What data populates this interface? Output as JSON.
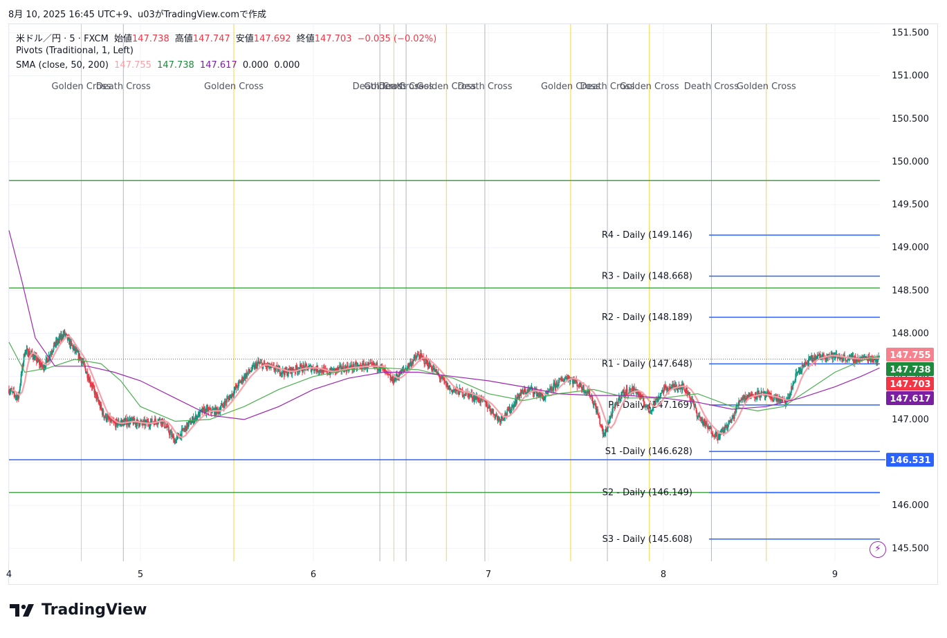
{
  "caption": "8月 10, 2025 16:45 UTC+9、u03がTradingView.comで作成",
  "legend": {
    "symbol": "米ドル／円 · 5 · FXCM",
    "open_label": "始値",
    "open": "147.738",
    "high_label": "高値",
    "high": "147.747",
    "low_label": "安値",
    "low": "147.692",
    "close_label": "終値",
    "close": "147.703",
    "change": "−0.035 (−0.02%)",
    "pivots": "Pivots (Traditional, 1, Left)",
    "sma_title": "SMA (close, 50, 200)",
    "sma_values": [
      "147.755",
      "147.738",
      "147.617",
      "0.000",
      "0.000"
    ]
  },
  "brand": "TradingView",
  "icons": {
    "logo": "tradingview-logo-icon",
    "indicator": "lightning-bolt-icon"
  },
  "colors": {
    "up": "#089981",
    "down": "#f23645",
    "sma_fast": "#f7a1a8",
    "sma_mid": "#4caf50",
    "sma_slow": "#9c27b0",
    "pivot": "#2962ff",
    "hline": "#43a047",
    "golden": "#f5d442",
    "death": "#b2b5be"
  },
  "chart_data": {
    "type": "candlestick",
    "y_axis": {
      "min": 145.35,
      "max": 151.6,
      "ticks": [
        "151.500",
        "151.000",
        "150.500",
        "150.000",
        "149.500",
        "149.000",
        "148.500",
        "148.000",
        "147.500",
        "147.000",
        "146.500",
        "146.000",
        "145.500"
      ]
    },
    "x_axis": {
      "ticks": [
        "4",
        "5",
        "6",
        "7",
        "8",
        "9"
      ]
    },
    "price_path": [
      [
        4.0,
        147.35
      ],
      [
        4.07,
        147.25
      ],
      [
        4.12,
        147.8
      ],
      [
        4.18,
        147.75
      ],
      [
        4.26,
        147.6
      ],
      [
        4.34,
        147.85
      ],
      [
        4.42,
        148.0
      ],
      [
        4.48,
        147.85
      ],
      [
        4.55,
        147.7
      ],
      [
        4.63,
        147.4
      ],
      [
        4.72,
        147.05
      ],
      [
        4.8,
        146.95
      ],
      [
        4.92,
        146.98
      ],
      [
        5.02,
        146.95
      ],
      [
        5.12,
        147.0
      ],
      [
        5.2,
        146.75
      ],
      [
        5.28,
        146.95
      ],
      [
        5.36,
        147.1
      ],
      [
        5.45,
        147.1
      ],
      [
        5.53,
        147.3
      ],
      [
        5.6,
        147.5
      ],
      [
        5.68,
        147.65
      ],
      [
        5.76,
        147.6
      ],
      [
        5.84,
        147.55
      ],
      [
        5.92,
        147.6
      ],
      [
        6.0,
        147.6
      ],
      [
        6.08,
        147.55
      ],
      [
        6.18,
        147.6
      ],
      [
        6.28,
        147.62
      ],
      [
        6.38,
        147.62
      ],
      [
        6.45,
        147.45
      ],
      [
        6.53,
        147.6
      ],
      [
        6.6,
        147.75
      ],
      [
        6.68,
        147.6
      ],
      [
        6.78,
        147.35
      ],
      [
        6.88,
        147.3
      ],
      [
        6.98,
        147.2
      ],
      [
        7.06,
        147.0
      ],
      [
        7.12,
        147.1
      ],
      [
        7.18,
        147.3
      ],
      [
        7.25,
        147.35
      ],
      [
        7.32,
        147.25
      ],
      [
        7.38,
        147.4
      ],
      [
        7.45,
        147.5
      ],
      [
        7.52,
        147.4
      ],
      [
        7.58,
        147.3
      ],
      [
        7.62,
        147.1
      ],
      [
        7.66,
        146.8
      ],
      [
        7.7,
        147.05
      ],
      [
        7.76,
        147.3
      ],
      [
        7.84,
        147.35
      ],
      [
        7.92,
        147.1
      ],
      [
        8.0,
        147.35
      ],
      [
        8.1,
        147.4
      ],
      [
        8.15,
        147.3
      ],
      [
        8.2,
        147.05
      ],
      [
        8.26,
        146.9
      ],
      [
        8.32,
        146.8
      ],
      [
        8.4,
        147.0
      ],
      [
        8.45,
        147.25
      ],
      [
        8.55,
        147.3
      ],
      [
        8.65,
        147.25
      ],
      [
        8.72,
        147.2
      ],
      [
        8.78,
        147.55
      ],
      [
        8.86,
        147.7
      ],
      [
        8.95,
        147.75
      ],
      [
        9.04,
        147.72
      ],
      [
        9.12,
        147.7
      ],
      [
        9.2,
        147.72
      ],
      [
        9.26,
        147.7
      ]
    ],
    "sma_50": [
      [
        4.0,
        147.9
      ],
      [
        4.12,
        147.55
      ],
      [
        4.3,
        147.6
      ],
      [
        4.5,
        147.7
      ],
      [
        4.7,
        147.65
      ],
      [
        4.85,
        147.45
      ],
      [
        5.0,
        147.15
      ],
      [
        5.2,
        146.98
      ],
      [
        5.4,
        147.0
      ],
      [
        5.6,
        147.15
      ],
      [
        5.8,
        147.35
      ],
      [
        6.0,
        147.5
      ],
      [
        6.2,
        147.58
      ],
      [
        6.4,
        147.6
      ],
      [
        6.6,
        147.58
      ],
      [
        6.8,
        147.48
      ],
      [
        7.0,
        147.3
      ],
      [
        7.2,
        147.22
      ],
      [
        7.4,
        147.3
      ],
      [
        7.6,
        147.35
      ],
      [
        7.8,
        147.25
      ],
      [
        8.0,
        147.25
      ],
      [
        8.2,
        147.3
      ],
      [
        8.4,
        147.15
      ],
      [
        8.55,
        147.1
      ],
      [
        8.7,
        147.15
      ],
      [
        8.85,
        147.35
      ],
      [
        9.0,
        147.55
      ],
      [
        9.15,
        147.68
      ],
      [
        9.26,
        147.74
      ]
    ],
    "sma_200": [
      [
        4.0,
        149.2
      ],
      [
        4.1,
        148.6
      ],
      [
        4.2,
        147.95
      ],
      [
        4.35,
        147.62
      ],
      [
        4.6,
        147.62
      ],
      [
        4.8,
        147.55
      ],
      [
        5.0,
        147.45
      ],
      [
        5.2,
        147.25
      ],
      [
        5.4,
        147.05
      ],
      [
        5.6,
        147.0
      ],
      [
        5.8,
        147.15
      ],
      [
        6.0,
        147.35
      ],
      [
        6.2,
        147.48
      ],
      [
        6.4,
        147.55
      ],
      [
        6.6,
        147.55
      ],
      [
        6.8,
        147.5
      ],
      [
        7.0,
        147.45
      ],
      [
        7.2,
        147.38
      ],
      [
        7.4,
        147.3
      ],
      [
        7.6,
        147.28
      ],
      [
        7.8,
        147.28
      ],
      [
        8.0,
        147.25
      ],
      [
        8.2,
        147.2
      ],
      [
        8.4,
        147.12
      ],
      [
        8.6,
        147.15
      ],
      [
        8.8,
        147.25
      ],
      [
        9.0,
        147.38
      ],
      [
        9.15,
        147.5
      ],
      [
        9.26,
        147.6
      ]
    ],
    "horizontal_lines": [
      149.78,
      148.53,
      146.15
    ],
    "current_line": 146.531,
    "pivots": [
      {
        "label": "R4 - Daily (149.146)",
        "value": 149.146
      },
      {
        "label": "R3 - Daily (148.668)",
        "value": 148.668
      },
      {
        "label": "R2 - Daily (148.189)",
        "value": 148.189
      },
      {
        "label": "R1 - Daily (147.648)",
        "value": 147.648
      },
      {
        "label": "P - Daily (147.169)",
        "value": 147.169
      },
      {
        "label": "S1 -Daily (146.628)",
        "value": 146.628
      },
      {
        "label": "S2 - Daily (146.149)",
        "value": 146.149
      },
      {
        "label": "S3 - Daily (145.608)",
        "value": 145.608
      }
    ],
    "crosses": [
      {
        "label": "Golden Cross",
        "x": 4.55,
        "kind": "golden"
      },
      {
        "label": "Death Cross",
        "x": 4.87,
        "kind": "death"
      },
      {
        "label": "Golden Cross",
        "x": 5.54,
        "kind": "golden"
      },
      {
        "label": "Death Cross",
        "x": 6.38,
        "kind": "death"
      },
      {
        "label": "Golden Cross",
        "x": 6.46,
        "kind": "golden"
      },
      {
        "label": "Death Cross",
        "x": 6.53,
        "kind": "death"
      },
      {
        "label": "Golden Cross",
        "x": 6.76,
        "kind": "golden"
      },
      {
        "label": "Death Cross",
        "x": 6.98,
        "kind": "death"
      },
      {
        "label": "Golden Cross",
        "x": 7.47,
        "kind": "golden"
      },
      {
        "label": "Death Cross",
        "x": 7.68,
        "kind": "death"
      },
      {
        "label": "Golden Cross",
        "x": 7.92,
        "kind": "golden"
      },
      {
        "label": "Death Cross",
        "x": 8.28,
        "kind": "death"
      },
      {
        "label": "Golden Cross",
        "x": 8.6,
        "kind": "golden"
      }
    ],
    "price_labels": [
      {
        "value": "147.755",
        "kind": "sma_fast"
      },
      {
        "value": "147.738",
        "kind": "sma_mid"
      },
      {
        "value": "147.703",
        "kind": "close"
      },
      {
        "value": "147.617",
        "kind": "sma_slow"
      },
      {
        "value": "146.531",
        "kind": "current"
      }
    ]
  }
}
